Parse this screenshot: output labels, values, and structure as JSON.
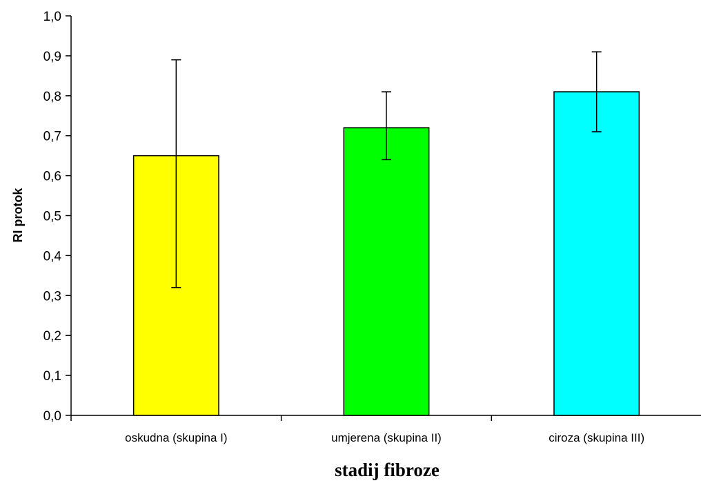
{
  "chart_data": {
    "type": "bar",
    "title": "",
    "xlabel": "stadij fibroze",
    "ylabel": "RI protok",
    "categories": [
      "oskudna (skupina I)",
      "umjerena (skupina II)",
      "ciroza (skupina III)"
    ],
    "values": [
      0.65,
      0.72,
      0.81
    ],
    "error_low": [
      0.32,
      0.64,
      0.71
    ],
    "error_high": [
      0.89,
      0.81,
      0.91
    ],
    "bar_colors": [
      "#ffff00",
      "#00ff00",
      "#00ffff"
    ],
    "ylim": [
      0,
      1.0
    ],
    "yticks": [
      "0,0",
      "0,1",
      "0,2",
      "0,3",
      "0,4",
      "0,5",
      "0,6",
      "0,7",
      "0,8",
      "0,9",
      "1,0"
    ],
    "grid": false,
    "legend": "none"
  }
}
